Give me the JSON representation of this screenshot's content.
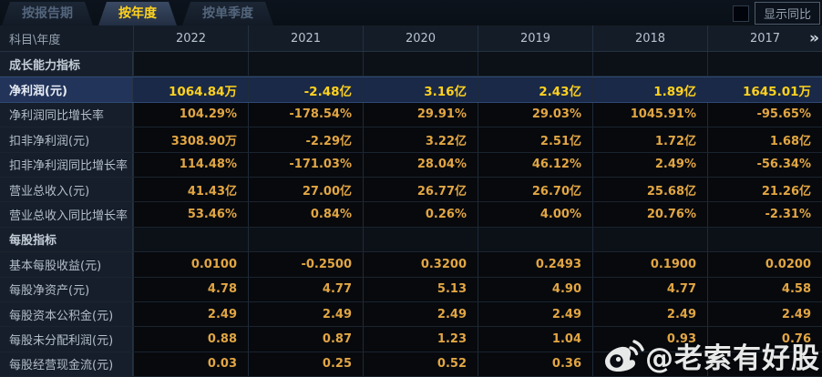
{
  "tabs": [
    {
      "label": "按报告期",
      "active": false
    },
    {
      "label": "按年度",
      "active": true
    },
    {
      "label": "按单季度",
      "active": false
    }
  ],
  "controls": {
    "show_yoy_label": "显示同比",
    "show_yoy_checked": false
  },
  "table": {
    "corner_header": "科目\\年度",
    "years": [
      "2022",
      "2021",
      "2020",
      "2019",
      "2018",
      "2017"
    ],
    "more_icon": "»",
    "rows": [
      {
        "type": "section",
        "label": "成长能力指标",
        "values": [
          "",
          "",
          "",
          "",
          "",
          ""
        ]
      },
      {
        "type": "highlight",
        "label": "净利润(元)",
        "values": [
          "1064.84万",
          "-2.48亿",
          "3.16亿",
          "2.43亿",
          "1.89亿",
          "1645.01万"
        ]
      },
      {
        "type": "data",
        "label": "净利润同比增长率",
        "values": [
          "104.29%",
          "-178.54%",
          "29.91%",
          "29.03%",
          "1045.91%",
          "-95.65%"
        ]
      },
      {
        "type": "data",
        "label": "扣非净利润(元)",
        "values": [
          "3308.90万",
          "-2.29亿",
          "3.22亿",
          "2.51亿",
          "1.72亿",
          "1.68亿"
        ]
      },
      {
        "type": "data",
        "label": "扣非净利润同比增长率",
        "values": [
          "114.48%",
          "-171.03%",
          "28.04%",
          "46.12%",
          "2.49%",
          "-56.34%"
        ]
      },
      {
        "type": "data",
        "label": "营业总收入(元)",
        "values": [
          "41.43亿",
          "27.00亿",
          "26.77亿",
          "26.70亿",
          "25.68亿",
          "21.26亿"
        ]
      },
      {
        "type": "data",
        "label": "营业总收入同比增长率",
        "values": [
          "53.46%",
          "0.84%",
          "0.26%",
          "4.00%",
          "20.76%",
          "-2.31%"
        ]
      },
      {
        "type": "section",
        "label": "每股指标",
        "values": [
          "",
          "",
          "",
          "",
          "",
          ""
        ]
      },
      {
        "type": "data",
        "label": "基本每股收益(元)",
        "values": [
          "0.0100",
          "-0.2500",
          "0.3200",
          "0.2493",
          "0.1900",
          "0.0200"
        ]
      },
      {
        "type": "data",
        "label": "每股净资产(元)",
        "values": [
          "4.78",
          "4.77",
          "5.13",
          "4.90",
          "4.77",
          "4.58"
        ]
      },
      {
        "type": "data",
        "label": "每股资本公积金(元)",
        "values": [
          "2.49",
          "2.49",
          "2.49",
          "2.49",
          "2.49",
          "2.49"
        ]
      },
      {
        "type": "data",
        "label": "每股未分配利润(元)",
        "values": [
          "0.88",
          "0.87",
          "1.23",
          "1.04",
          "0.93",
          "0.76"
        ]
      },
      {
        "type": "data",
        "label": "每股经营现金流(元)",
        "values": [
          "0.03",
          "0.25",
          "0.52",
          "0.36",
          "",
          ""
        ]
      }
    ]
  },
  "watermark": {
    "icon": "weibo-logo-icon",
    "text": "@老索有好股"
  },
  "colors": {
    "accent_yellow": "#ffd21e",
    "value_gold": "#e2a643",
    "highlight_row_bg": "#1a2947",
    "highlight_label_bg": "#23345a"
  }
}
